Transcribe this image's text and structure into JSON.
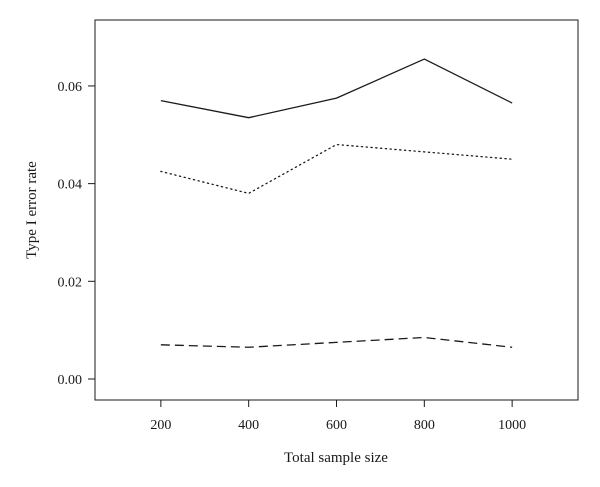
{
  "chart_data": {
    "type": "line",
    "title": "",
    "xlabel": "Total sample size",
    "ylabel": "Type I error rate",
    "x": [
      200,
      400,
      600,
      800,
      1000
    ],
    "xlim": [
      50,
      1150
    ],
    "ylim": [
      -0.0043,
      0.0735
    ],
    "xticks": [
      200,
      400,
      600,
      800,
      1000
    ],
    "xtick_labels": [
      "200",
      "400",
      "600",
      "800",
      "1000"
    ],
    "yticks": [
      0.0,
      0.02,
      0.04,
      0.06
    ],
    "ytick_labels": [
      "0.00",
      "0.02",
      "0.04",
      "0.06"
    ],
    "grid": false,
    "legend": "none",
    "series": [
      {
        "line_style": "solid",
        "color": "#1a1a1a",
        "values": [
          0.057,
          0.0535,
          0.0575,
          0.0655,
          0.0565
        ]
      },
      {
        "line_style": "dotted",
        "color": "#1a1a1a",
        "values": [
          0.0425,
          0.038,
          0.048,
          0.0465,
          0.045
        ]
      },
      {
        "line_style": "dashed",
        "color": "#1a1a1a",
        "values": [
          0.007,
          0.0065,
          0.0075,
          0.0085,
          0.0065
        ]
      }
    ]
  }
}
